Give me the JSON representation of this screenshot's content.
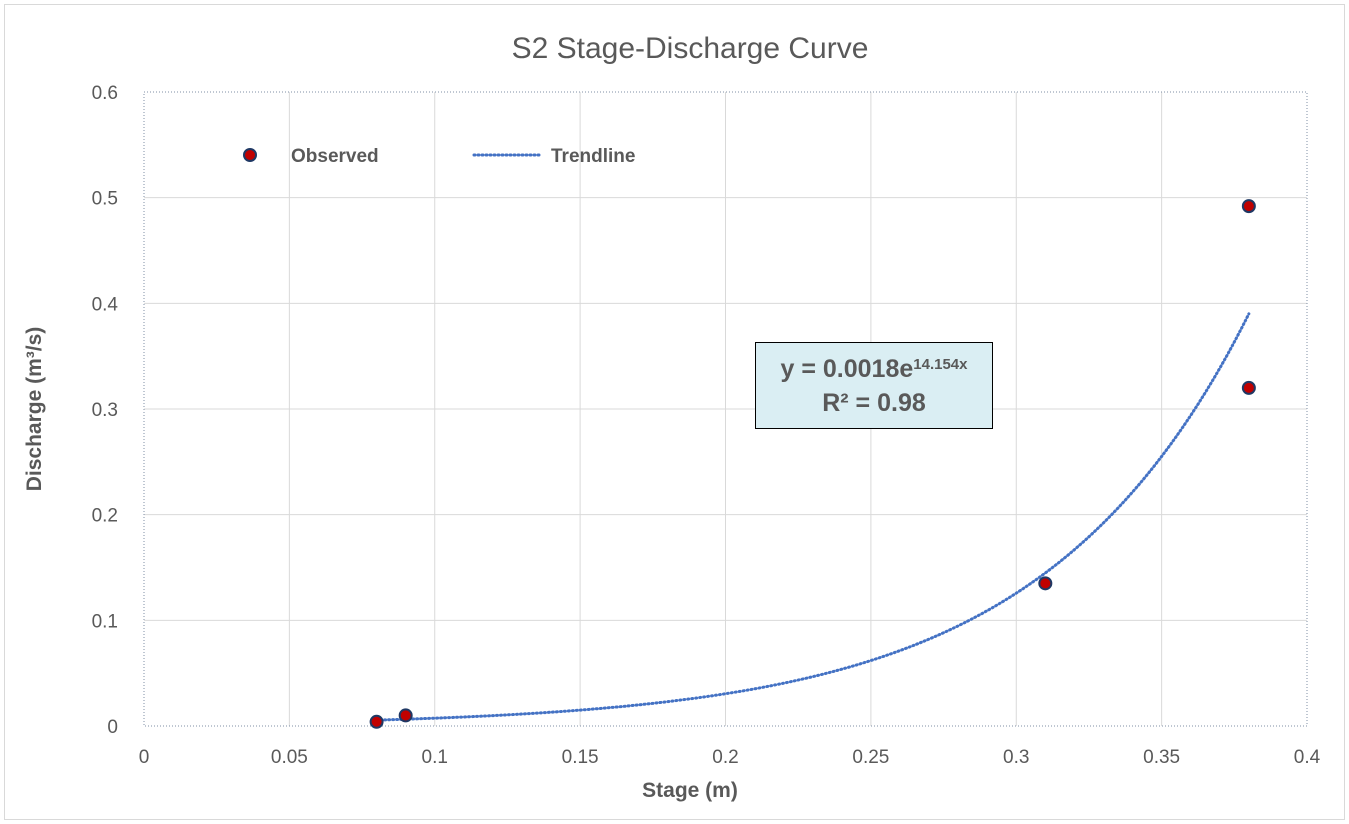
{
  "chart_data": {
    "type": "scatter",
    "title": "S2 Stage-Discharge Curve",
    "xlabel": "Stage (m)",
    "ylabel": "Discharge (m³/s)",
    "xlim": [
      0,
      0.4
    ],
    "ylim": [
      0,
      0.6
    ],
    "xticks": [
      "0",
      "0.05",
      "0.1",
      "0.15",
      "0.2",
      "0.25",
      "0.3",
      "0.35",
      "0.4"
    ],
    "yticks": [
      "0",
      "0.1",
      "0.2",
      "0.3",
      "0.4",
      "0.5",
      "0.6"
    ],
    "grid": true,
    "legend_position": "top-left",
    "series": [
      {
        "name": "Observed",
        "kind": "markers",
        "color": "#c00000",
        "edge_color": "#1f3864",
        "points": [
          {
            "x": 0.08,
            "y": 0.004
          },
          {
            "x": 0.09,
            "y": 0.01
          },
          {
            "x": 0.31,
            "y": 0.135
          },
          {
            "x": 0.38,
            "y": 0.32
          },
          {
            "x": 0.38,
            "y": 0.492
          }
        ]
      },
      {
        "name": "Trendline",
        "kind": "dotted-line",
        "color": "#4472c4",
        "model": "exponential",
        "a": 0.0018,
        "b": 14.154,
        "x_range": [
          0.08,
          0.38
        ]
      }
    ],
    "annotation": {
      "equation_prefix": "y = 0.0018e",
      "equation_exponent": "14.154x",
      "r_squared": "R² = 0.98"
    }
  }
}
